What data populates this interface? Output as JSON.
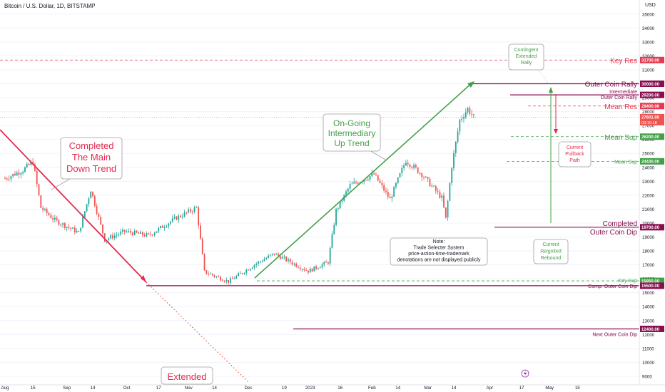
{
  "header": {
    "symbol": "Bitcoin / U.S. Dollar, 1D, BITSTAMP",
    "currency": "USD"
  },
  "colors": {
    "up": "#26a69a",
    "down": "#ef5350",
    "up_fill": "#4caf50",
    "down_fill": "#e53935",
    "maroon": "#880e4f",
    "green": "#43a047",
    "red": "#e53950",
    "dotted_red": "#ef5350"
  },
  "chart_data": {
    "type": "candlestick",
    "title": "Bitcoin / U.S. Dollar, 1D, BITSTAMP",
    "x_ticks": [
      "Aug",
      "15",
      "Sep",
      "14",
      "Oct",
      "17",
      "Nov",
      "14",
      "Dec",
      "19",
      "2023",
      "16",
      "Feb",
      "14",
      "Mar",
      "14",
      "Apr",
      "17",
      "May",
      "15"
    ],
    "y_ticks": [
      35000,
      34000,
      33000,
      32000,
      31000,
      30000,
      29000,
      28000,
      27000,
      26000,
      25000,
      24000,
      23000,
      22000,
      21000,
      20000,
      19000,
      18000,
      17000,
      16000,
      15000,
      14000,
      13000,
      12000,
      11000,
      10000,
      9000
    ],
    "y_range": [
      8500,
      35500
    ],
    "price_anchors": [
      {
        "date": "Aug 1",
        "price": 23200
      },
      {
        "date": "Aug 10",
        "price": 23800
      },
      {
        "date": "Aug 15",
        "price": 24400
      },
      {
        "date": "Aug 19",
        "price": 21100
      },
      {
        "date": "Aug 26",
        "price": 20200
      },
      {
        "date": "Sep 7",
        "price": 19300
      },
      {
        "date": "Sep 13",
        "price": 22400
      },
      {
        "date": "Sep 20",
        "price": 18800
      },
      {
        "date": "Sep 30",
        "price": 19400
      },
      {
        "date": "Oct 12",
        "price": 19100
      },
      {
        "date": "Oct 25",
        "price": 20300
      },
      {
        "date": "Nov 5",
        "price": 21100
      },
      {
        "date": "Nov 9",
        "price": 16500
      },
      {
        "date": "Nov 21",
        "price": 15800
      },
      {
        "date": "Dec 5",
        "price": 17100
      },
      {
        "date": "Dec 14",
        "price": 17800
      },
      {
        "date": "Dec 31",
        "price": 16550
      },
      {
        "date": "Jan 10",
        "price": 17200
      },
      {
        "date": "Jan 14",
        "price": 20900
      },
      {
        "date": "Jan 21",
        "price": 22700
      },
      {
        "date": "Feb 2",
        "price": 23500
      },
      {
        "date": "Feb 10",
        "price": 21700
      },
      {
        "date": "Feb 18",
        "price": 24500
      },
      {
        "date": "Feb 26",
        "price": 23500
      },
      {
        "date": "Mar 8",
        "price": 21800
      },
      {
        "date": "Mar 10",
        "price": 20300
      },
      {
        "date": "Mar 13",
        "price": 24100
      },
      {
        "date": "Mar 17",
        "price": 27400
      },
      {
        "date": "Mar 21",
        "price": 28200
      },
      {
        "date": "Mar 24",
        "price": 27600
      }
    ],
    "levels": [
      {
        "name": "Key Res",
        "price": 31700.0,
        "label": "31700.00",
        "style": "dashed",
        "color": "red"
      },
      {
        "name": "Outer Coin Rally",
        "price": 30000.0,
        "label": "30000.00",
        "style": "solid",
        "color": "maroon"
      },
      {
        "name": "Intermediate Outer Coin Rally",
        "price": 29200.0,
        "label": "29200.00",
        "style": "solid",
        "color": "maroon"
      },
      {
        "name": "Mean Res",
        "price": 28400.0,
        "label": "28400.00",
        "style": "dashed",
        "color": "red"
      },
      {
        "name": "Mean Sup",
        "price": 26200.0,
        "label": "26200.00",
        "style": "dashed",
        "color": "green"
      },
      {
        "name": "Mean Sup",
        "price": 24430.0,
        "label": "24430.00",
        "style": "dashed",
        "color": "green"
      },
      {
        "name": "Completed Outer Coin Dip",
        "price": 19700.0,
        "label": "19700.00",
        "style": "solid",
        "color": "maroon"
      },
      {
        "name": "Key Sup",
        "price": 15850.0,
        "label": "15850.00",
        "style": "dashed",
        "color": "green"
      },
      {
        "name": "Comp. Outer Coin Dip",
        "price": 15500.0,
        "label": "15500.00",
        "style": "solid",
        "color": "maroon"
      },
      {
        "name": "Next Outer Coin Dip",
        "price": 12400.0,
        "label": "12400.00",
        "style": "solid",
        "color": "maroon"
      }
    ],
    "current_price": {
      "value": "27601.00",
      "countdown": "03:10:18"
    }
  },
  "annotations": {
    "completed_down": [
      "Completed",
      "The Main",
      "Down Trend"
    ],
    "ongoing_up": [
      "On-Going",
      "Intermediary",
      "Up Trend"
    ],
    "extended": "Extended",
    "contingent": [
      "Contingent",
      "Extended",
      "Rally"
    ],
    "pullback": [
      "Current",
      "Pullback",
      "Path"
    ],
    "rebound": [
      "Current",
      "Reignited",
      "Rebound"
    ],
    "note": [
      "Note:",
      "Trade Selecter System",
      "price-action-time-trademark",
      "denotations are not displayed publicly"
    ],
    "right_labels": {
      "key_res": "Key Res",
      "outer_rally": "Outer Coin Rally",
      "intermediate": "Intermediate",
      "outer_rally_small": "Outer Coin Rally",
      "mean_res": "Mean Res",
      "mean_sup_a": "Mean Sup",
      "mean_sup_b": "Mean Sup",
      "completed_a": "Completed",
      "completed_b": "Outer Coin Dip",
      "key_sup": "Key Sup",
      "comp_outer": "Comp. Outer Coin Dip",
      "next_outer": "Next Outer Coin Dip"
    }
  },
  "icons": {
    "lightning": "lightning-icon"
  }
}
